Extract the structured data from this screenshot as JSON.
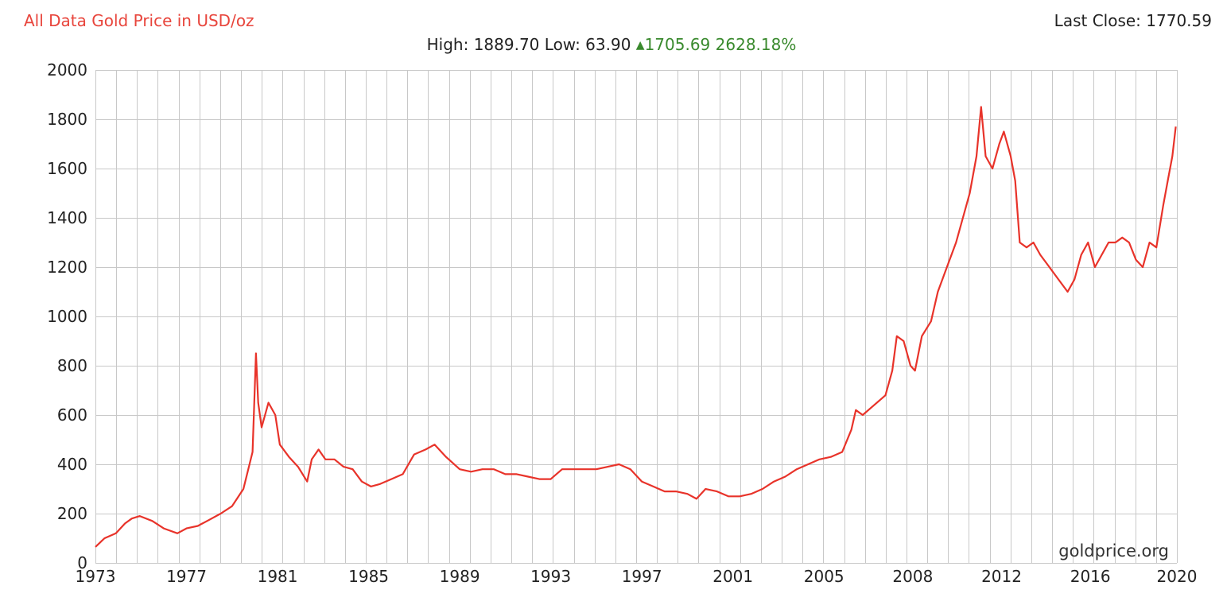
{
  "header": {
    "title": "All Data Gold Price in USD/oz",
    "last_close_label": "Last Close:",
    "last_close_value": "1770.59",
    "high_label": "High:",
    "high_value": "1889.70",
    "low_label": "Low:",
    "low_value": "63.90",
    "change_value": "1705.69",
    "change_pct": "2628.18%"
  },
  "watermark": "goldprice.org",
  "colors": {
    "series": "#e8332a",
    "title": "#e8453c",
    "positive": "#3a8a2e",
    "grid": "#c8c8c8"
  },
  "chart_data": {
    "type": "line",
    "title": "All Data Gold Price in USD/oz",
    "xlabel": "",
    "ylabel": "",
    "xlim": [
      1973.0,
      2020.5
    ],
    "ylim": [
      0,
      2000
    ],
    "grid": true,
    "x_tick_labels": [
      "1973",
      "1977",
      "1981",
      "1985",
      "1989",
      "1993",
      "1997",
      "2001",
      "2005",
      "2008",
      "2012",
      "2016",
      "2020"
    ],
    "x_tick_values": [
      1973.0,
      1977.0,
      1981.0,
      1985.0,
      1989.0,
      1993.0,
      1997.0,
      2001.0,
      2005.0,
      2008.9,
      2012.8,
      2016.7,
      2020.5
    ],
    "y_tick_values": [
      0,
      200,
      400,
      600,
      800,
      1000,
      1200,
      1400,
      1600,
      1800,
      2000
    ],
    "series": [
      {
        "x": [
          1973.0,
          1973.4,
          1973.9,
          1974.3,
          1974.6,
          1974.95,
          1975.5,
          1976.0,
          1976.6,
          1977.0,
          1977.5,
          1978.0,
          1978.5,
          1979.0,
          1979.5,
          1979.9,
          1980.05,
          1980.15,
          1980.3,
          1980.6,
          1980.9,
          1981.1,
          1981.5,
          1981.9,
          1982.3,
          1982.5,
          1982.8,
          1983.1,
          1983.5,
          1983.9,
          1984.3,
          1984.7,
          1985.1,
          1985.5,
          1986.0,
          1986.5,
          1987.0,
          1987.5,
          1987.9,
          1988.4,
          1989.0,
          1989.5,
          1990.0,
          1990.5,
          1991.0,
          1991.5,
          1992.0,
          1992.5,
          1993.0,
          1993.5,
          1994.0,
          1994.5,
          1995.0,
          1995.5,
          1996.0,
          1996.5,
          1997.0,
          1997.5,
          1998.0,
          1998.5,
          1999.0,
          1999.4,
          1999.8,
          2000.3,
          2000.8,
          2001.3,
          2001.8,
          2002.3,
          2002.8,
          2003.3,
          2003.8,
          2004.3,
          2004.8,
          2005.3,
          2005.8,
          2006.2,
          2006.4,
          2006.7,
          2007.2,
          2007.7,
          2008.0,
          2008.2,
          2008.5,
          2008.8,
          2009.0,
          2009.3,
          2009.7,
          2010.0,
          2010.4,
          2010.8,
          2011.1,
          2011.4,
          2011.7,
          2011.9,
          2012.1,
          2012.4,
          2012.7,
          2012.9,
          2013.2,
          2013.4,
          2013.6,
          2013.9,
          2014.2,
          2014.5,
          2014.9,
          2015.3,
          2015.7,
          2016.0,
          2016.3,
          2016.6,
          2016.9,
          2017.2,
          2017.5,
          2017.8,
          2018.1,
          2018.4,
          2018.7,
          2019.0,
          2019.3,
          2019.6,
          2019.9,
          2020.1,
          2020.3,
          2020.45
        ],
        "y": [
          65,
          100,
          120,
          160,
          180,
          190,
          170,
          140,
          120,
          140,
          150,
          175,
          200,
          230,
          300,
          450,
          850,
          650,
          550,
          650,
          600,
          480,
          430,
          390,
          330,
          420,
          460,
          420,
          420,
          390,
          380,
          330,
          310,
          320,
          340,
          360,
          440,
          460,
          480,
          430,
          380,
          370,
          380,
          380,
          360,
          360,
          350,
          340,
          340,
          380,
          380,
          380,
          380,
          390,
          400,
          380,
          330,
          310,
          290,
          290,
          280,
          260,
          300,
          290,
          270,
          270,
          280,
          300,
          330,
          350,
          380,
          400,
          420,
          430,
          450,
          540,
          620,
          600,
          640,
          680,
          780,
          920,
          900,
          800,
          780,
          920,
          980,
          1100,
          1200,
          1300,
          1400,
          1500,
          1650,
          1850,
          1650,
          1600,
          1700,
          1750,
          1650,
          1550,
          1300,
          1280,
          1300,
          1250,
          1200,
          1150,
          1100,
          1150,
          1250,
          1300,
          1200,
          1250,
          1300,
          1300,
          1320,
          1300,
          1230,
          1200,
          1300,
          1280,
          1450,
          1550,
          1650,
          1770
        ]
      }
    ]
  }
}
